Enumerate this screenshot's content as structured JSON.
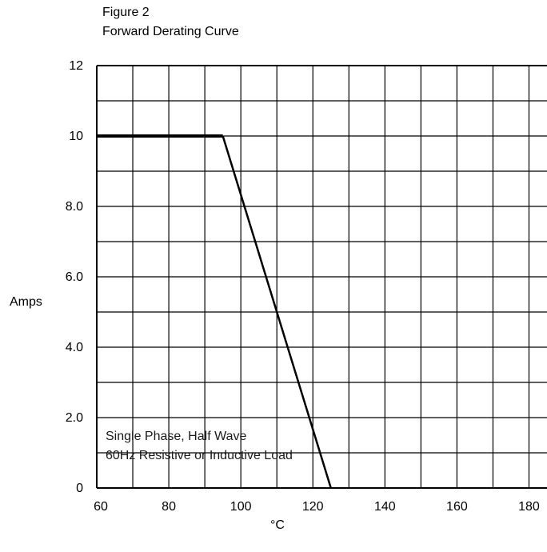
{
  "figure_label": "Figure 2",
  "chart_data": {
    "type": "line",
    "title": "Forward Derating Curve",
    "xlabel": "°C",
    "ylabel": "Amps",
    "xlim": [
      60,
      185
    ],
    "ylim": [
      0,
      12
    ],
    "x_ticks": [
      "60",
      "80",
      "100",
      "120",
      "140",
      "160",
      "180"
    ],
    "x_tick_values": [
      60,
      80,
      100,
      120,
      140,
      160,
      180
    ],
    "y_ticks": [
      "0",
      "2.0",
      "4.0",
      "6.0",
      "8.0",
      "10",
      "12"
    ],
    "y_tick_values": [
      0,
      2,
      4,
      6,
      8,
      10,
      12
    ],
    "grid": true,
    "series": [
      {
        "x": [
          60,
          95,
          125
        ],
        "y": [
          10,
          10,
          0
        ]
      }
    ],
    "annotations": [
      "Single Phase, Half Wave",
      "60Hz Resistive or Inductive Load"
    ],
    "colors": {
      "line": "#000000",
      "grid": "#000000"
    }
  }
}
